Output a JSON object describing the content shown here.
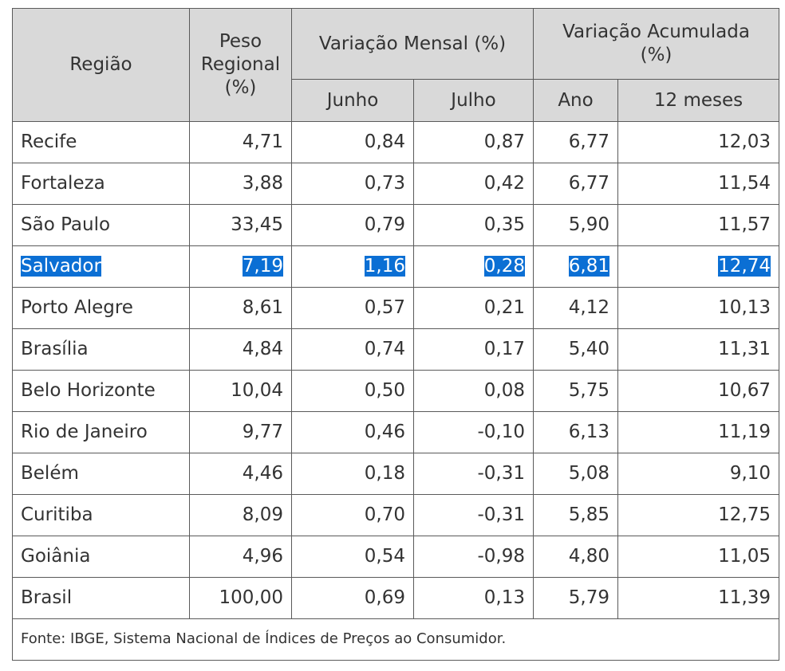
{
  "header": {
    "regiao": "Região",
    "peso_line1": "Peso",
    "peso_line2": "Regional",
    "peso_line3": "(%)",
    "variacao_mensal": "Variação Mensal (%)",
    "variacao_acumulada_line1": "Variação Acumulada",
    "variacao_acumulada_line2": "(%)",
    "junho": "Junho",
    "julho": "Julho",
    "ano": "Ano",
    "doze_meses": "12 meses"
  },
  "rows": [
    {
      "regiao": "Recife",
      "peso": "4,71",
      "junho": "0,84",
      "julho": "0,87",
      "ano": "6,77",
      "doze_meses": "12,03",
      "selected": false
    },
    {
      "regiao": "Fortaleza",
      "peso": "3,88",
      "junho": "0,73",
      "julho": "0,42",
      "ano": "6,77",
      "doze_meses": "11,54",
      "selected": false
    },
    {
      "regiao": "São Paulo",
      "peso": "33,45",
      "junho": "0,79",
      "julho": "0,35",
      "ano": "5,90",
      "doze_meses": "11,57",
      "selected": false
    },
    {
      "regiao": "Salvador",
      "peso": "7,19",
      "junho": "1,16",
      "julho": "0,28",
      "ano": "6,81",
      "doze_meses": "12,74",
      "selected": true
    },
    {
      "regiao": "Porto Alegre",
      "peso": "8,61",
      "junho": "0,57",
      "julho": "0,21",
      "ano": "4,12",
      "doze_meses": "10,13",
      "selected": false
    },
    {
      "regiao": "Brasília",
      "peso": "4,84",
      "junho": "0,74",
      "julho": "0,17",
      "ano": "5,40",
      "doze_meses": "11,31",
      "selected": false
    },
    {
      "regiao": "Belo Horizonte",
      "peso": "10,04",
      "junho": "0,50",
      "julho": "0,08",
      "ano": "5,75",
      "doze_meses": "10,67",
      "selected": false
    },
    {
      "regiao": "Rio de Janeiro",
      "peso": "9,77",
      "junho": "0,46",
      "julho": "-0,10",
      "ano": "6,13",
      "doze_meses": "11,19",
      "selected": false
    },
    {
      "regiao": "Belém",
      "peso": "4,46",
      "junho": "0,18",
      "julho": "-0,31",
      "ano": "5,08",
      "doze_meses": "9,10",
      "selected": false
    },
    {
      "regiao": "Curitiba",
      "peso": "8,09",
      "junho": "0,70",
      "julho": "-0,31",
      "ano": "5,85",
      "doze_meses": "12,75",
      "selected": false
    },
    {
      "regiao": "Goiânia",
      "peso": "4,96",
      "junho": "0,54",
      "julho": "-0,98",
      "ano": "4,80",
      "doze_meses": "11,05",
      "selected": false
    },
    {
      "regiao": "Brasil",
      "peso": "100,00",
      "junho": "0,69",
      "julho": "0,13",
      "ano": "5,79",
      "doze_meses": "11,39",
      "selected": false
    }
  ],
  "footer": {
    "fonte": "Fonte: IBGE, Sistema Nacional de Índices de Preços ao Consumidor."
  },
  "colors": {
    "header_bg": "#d9d9d9",
    "border": "#5a5a5a",
    "selection_bg": "#0b6fd4",
    "selection_text": "#ffffff",
    "text": "#333333"
  }
}
